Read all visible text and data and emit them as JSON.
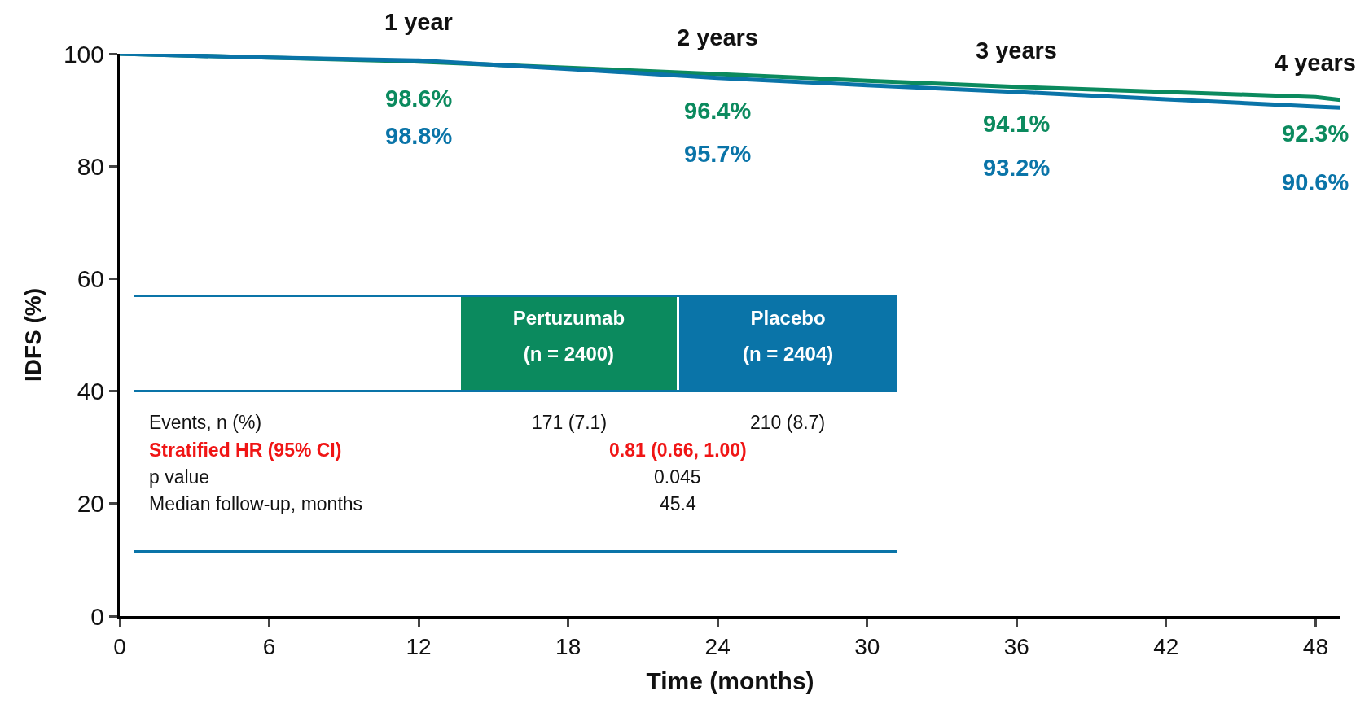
{
  "chart_data": {
    "type": "line",
    "xlabel": "Time (months)",
    "ylabel": "IDFS (%)",
    "x": [
      0,
      6,
      12,
      18,
      24,
      30,
      36,
      42,
      48,
      49
    ],
    "series": [
      {
        "name": "Pertuzumab",
        "color": "#0b8a5e",
        "values": [
          100,
          99.3,
          98.6,
          97.5,
          96.4,
          95.2,
          94.1,
          93.2,
          92.3,
          91.8
        ],
        "value_labels": [
          null,
          null,
          "98.6%",
          null,
          "96.4%",
          null,
          "94.1%",
          null,
          "92.3%",
          null
        ]
      },
      {
        "name": "Placebo",
        "color": "#0a74a8",
        "values": [
          100,
          99.3,
          98.8,
          97.3,
          95.7,
          94.4,
          93.2,
          91.9,
          90.6,
          90.4
        ],
        "value_labels": [
          null,
          null,
          "98.8%",
          null,
          "95.7%",
          null,
          "93.2%",
          null,
          "90.6%",
          null
        ]
      }
    ],
    "xlim": [
      0,
      49
    ],
    "xticks": [
      0,
      6,
      12,
      18,
      24,
      30,
      36,
      42,
      48
    ],
    "ylim": [
      0,
      100
    ],
    "yticks": [
      0,
      20,
      40,
      60,
      80,
      100
    ],
    "grid": false,
    "legend": false,
    "annotations": [
      {
        "text": "1 year",
        "x": 12,
        "y": 98.7
      },
      {
        "text": "2 years",
        "x": 24,
        "y": 96
      },
      {
        "text": "3 years",
        "x": 36,
        "y": 93.6
      },
      {
        "text": "4 years",
        "x": 48,
        "y": 91.4
      },
      "(n = 2400)",
      "(n = 2404)",
      "Events, n (%)",
      "171 (7.1)",
      "210 (8.7)",
      "Stratified HR (95% CI)",
      "0.81 (0.66, 1.00)",
      "p value",
      "0.045",
      "Median follow-up, months",
      "45.4"
    ]
  }
}
